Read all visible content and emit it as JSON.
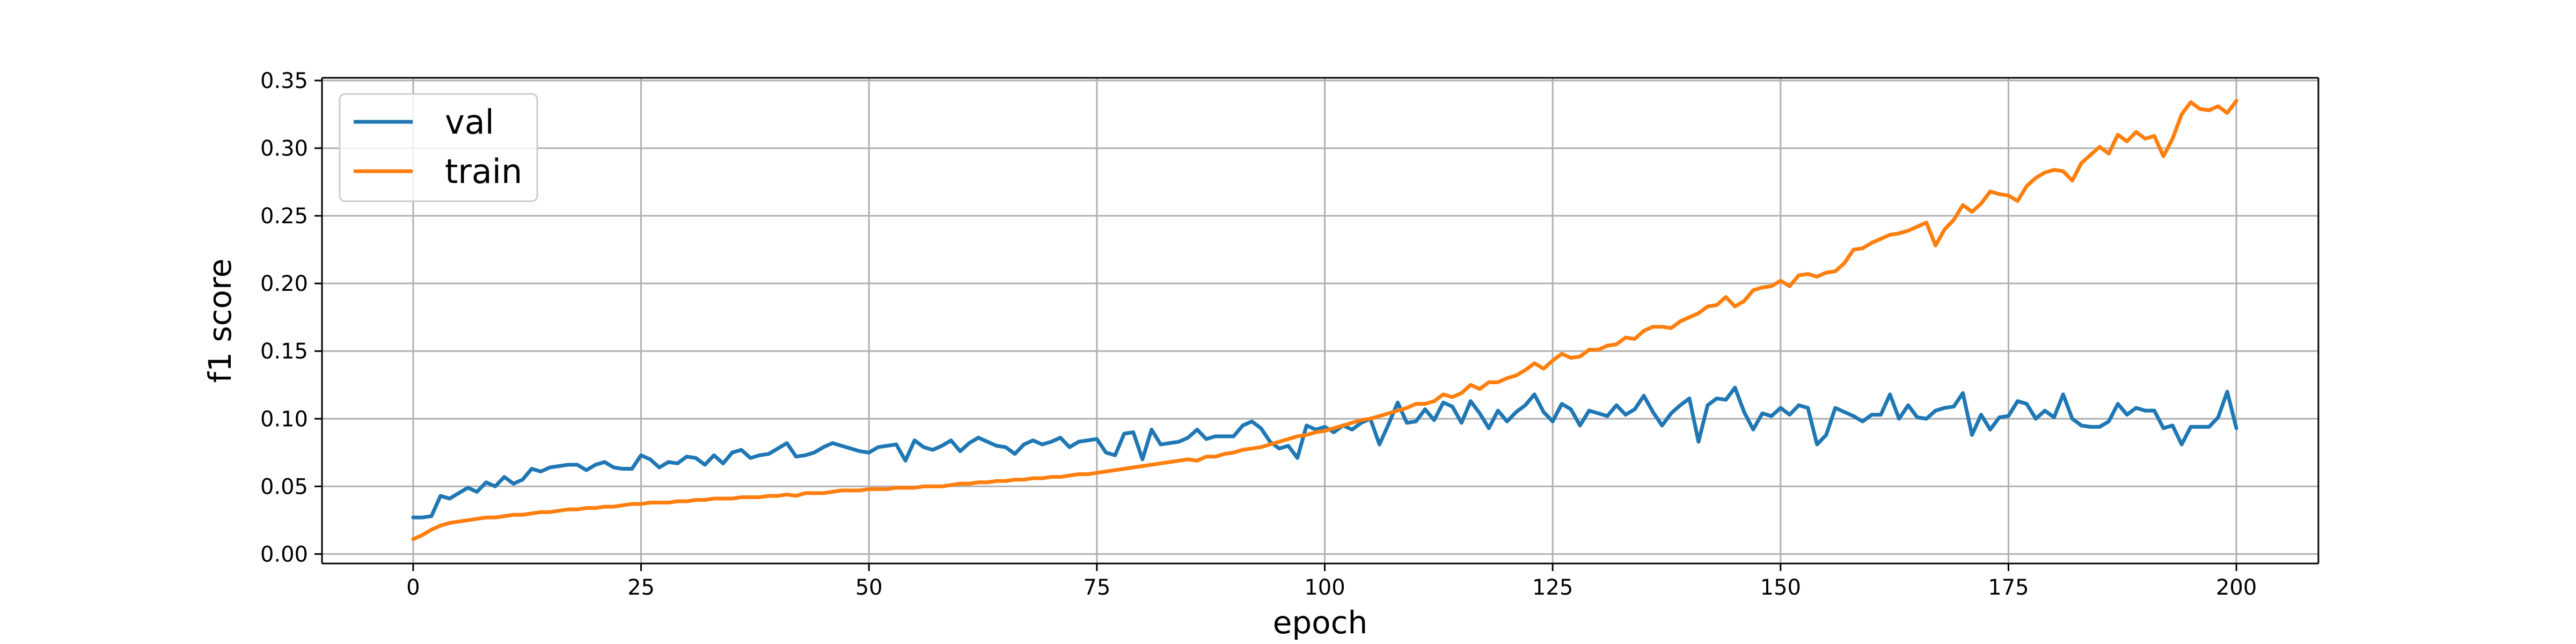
{
  "chart_data": {
    "type": "line",
    "xlabel": "epoch",
    "ylabel": "f1 score",
    "xlim": [
      -10,
      209
    ],
    "ylim": [
      -0.007,
      0.352
    ],
    "x_ticks": [
      0,
      25,
      50,
      75,
      100,
      125,
      150,
      175,
      200
    ],
    "x_tick_labels": [
      "0",
      "25",
      "50",
      "75",
      "100",
      "125",
      "150",
      "175",
      "200"
    ],
    "y_ticks": [
      0.0,
      0.05,
      0.1,
      0.15,
      0.2,
      0.25,
      0.3,
      0.35
    ],
    "y_tick_labels": [
      "0.00",
      "0.05",
      "0.10",
      "0.15",
      "0.20",
      "0.25",
      "0.30",
      "0.35"
    ],
    "grid": true,
    "legend": {
      "placement": "top-left",
      "entries": [
        "val",
        "train"
      ]
    },
    "series": [
      {
        "name": "val",
        "color": "#1f77b4",
        "x_start": 0,
        "x_step": 1,
        "values": [
          0.027,
          0.027,
          0.028,
          0.043,
          0.041,
          0.045,
          0.049,
          0.046,
          0.053,
          0.05,
          0.057,
          0.052,
          0.055,
          0.063,
          0.061,
          0.064,
          0.065,
          0.066,
          0.066,
          0.062,
          0.066,
          0.068,
          0.064,
          0.063,
          0.063,
          0.073,
          0.07,
          0.064,
          0.068,
          0.067,
          0.072,
          0.071,
          0.066,
          0.073,
          0.067,
          0.075,
          0.077,
          0.071,
          0.073,
          0.074,
          0.078,
          0.082,
          0.072,
          0.073,
          0.075,
          0.079,
          0.082,
          0.08,
          0.078,
          0.076,
          0.075,
          0.079,
          0.08,
          0.081,
          0.069,
          0.084,
          0.079,
          0.077,
          0.08,
          0.084,
          0.076,
          0.082,
          0.086,
          0.083,
          0.08,
          0.079,
          0.074,
          0.081,
          0.084,
          0.081,
          0.083,
          0.086,
          0.079,
          0.083,
          0.084,
          0.085,
          0.075,
          0.073,
          0.089,
          0.09,
          0.07,
          0.092,
          0.081,
          0.082,
          0.083,
          0.086,
          0.092,
          0.085,
          0.087,
          0.087,
          0.087,
          0.095,
          0.098,
          0.093,
          0.083,
          0.078,
          0.08,
          0.071,
          0.095,
          0.092,
          0.094,
          0.09,
          0.095,
          0.092,
          0.097,
          0.1,
          0.081,
          0.096,
          0.112,
          0.097,
          0.098,
          0.107,
          0.099,
          0.112,
          0.109,
          0.097,
          0.113,
          0.104,
          0.093,
          0.106,
          0.098,
          0.105,
          0.11,
          0.118,
          0.105,
          0.098,
          0.111,
          0.107,
          0.095,
          0.106,
          0.104,
          0.102,
          0.11,
          0.103,
          0.107,
          0.117,
          0.105,
          0.095,
          0.104,
          0.11,
          0.115,
          0.083,
          0.11,
          0.115,
          0.114,
          0.123,
          0.105,
          0.092,
          0.104,
          0.102,
          0.108,
          0.103,
          0.11,
          0.108,
          0.081,
          0.088,
          0.108,
          0.105,
          0.102,
          0.098,
          0.103,
          0.103,
          0.118,
          0.1,
          0.11,
          0.101,
          0.1,
          0.106,
          0.108,
          0.109,
          0.119,
          0.088,
          0.103,
          0.092,
          0.101,
          0.102,
          0.113,
          0.111,
          0.1,
          0.106,
          0.101,
          0.118,
          0.1,
          0.095,
          0.094,
          0.094,
          0.098,
          0.111,
          0.103,
          0.108,
          0.106,
          0.106,
          0.093,
          0.095,
          0.081,
          0.094,
          0.094,
          0.094,
          0.101,
          0.12,
          0.093
        ]
      },
      {
        "name": "train",
        "color": "#ff7f0e",
        "x_start": 0,
        "x_step": 1,
        "values": [
          0.011,
          0.014,
          0.018,
          0.021,
          0.023,
          0.024,
          0.025,
          0.026,
          0.027,
          0.027,
          0.028,
          0.029,
          0.029,
          0.03,
          0.031,
          0.031,
          0.032,
          0.033,
          0.033,
          0.034,
          0.034,
          0.035,
          0.035,
          0.036,
          0.037,
          0.037,
          0.038,
          0.038,
          0.038,
          0.039,
          0.039,
          0.04,
          0.04,
          0.041,
          0.041,
          0.041,
          0.042,
          0.042,
          0.042,
          0.043,
          0.043,
          0.044,
          0.043,
          0.045,
          0.045,
          0.045,
          0.046,
          0.047,
          0.047,
          0.047,
          0.048,
          0.048,
          0.048,
          0.049,
          0.049,
          0.049,
          0.05,
          0.05,
          0.05,
          0.051,
          0.052,
          0.052,
          0.053,
          0.053,
          0.054,
          0.054,
          0.055,
          0.055,
          0.056,
          0.056,
          0.057,
          0.057,
          0.058,
          0.059,
          0.059,
          0.06,
          0.061,
          0.062,
          0.063,
          0.064,
          0.065,
          0.066,
          0.067,
          0.068,
          0.069,
          0.07,
          0.069,
          0.072,
          0.072,
          0.074,
          0.075,
          0.077,
          0.078,
          0.079,
          0.081,
          0.083,
          0.085,
          0.087,
          0.088,
          0.09,
          0.091,
          0.093,
          0.095,
          0.097,
          0.099,
          0.1,
          0.102,
          0.104,
          0.106,
          0.108,
          0.111,
          0.111,
          0.113,
          0.118,
          0.116,
          0.119,
          0.125,
          0.122,
          0.127,
          0.127,
          0.13,
          0.132,
          0.136,
          0.141,
          0.137,
          0.143,
          0.148,
          0.145,
          0.146,
          0.151,
          0.151,
          0.154,
          0.155,
          0.16,
          0.159,
          0.165,
          0.168,
          0.168,
          0.167,
          0.172,
          0.175,
          0.178,
          0.183,
          0.184,
          0.19,
          0.183,
          0.187,
          0.195,
          0.197,
          0.198,
          0.202,
          0.198,
          0.206,
          0.207,
          0.205,
          0.208,
          0.209,
          0.215,
          0.225,
          0.226,
          0.23,
          0.233,
          0.236,
          0.237,
          0.239,
          0.242,
          0.245,
          0.228,
          0.24,
          0.247,
          0.258,
          0.253,
          0.259,
          0.268,
          0.266,
          0.265,
          0.261,
          0.272,
          0.278,
          0.282,
          0.284,
          0.283,
          0.276,
          0.289,
          0.295,
          0.301,
          0.296,
          0.31,
          0.305,
          0.312,
          0.307,
          0.309,
          0.294,
          0.307,
          0.325,
          0.334,
          0.329,
          0.328,
          0.331,
          0.326,
          0.335
        ]
      }
    ]
  }
}
